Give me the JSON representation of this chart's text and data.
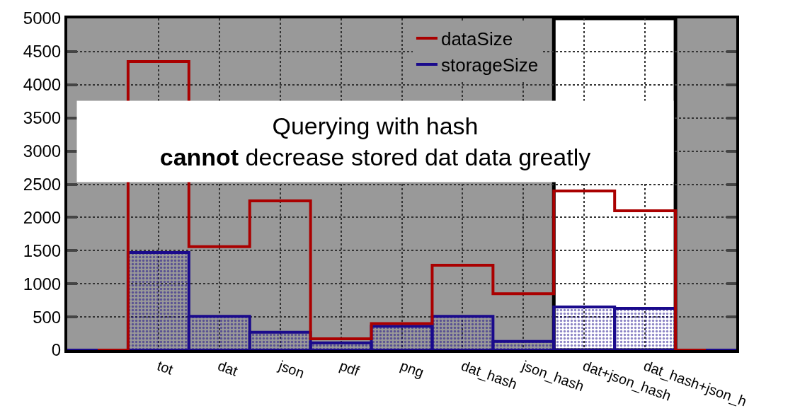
{
  "chart_data": {
    "type": "bar",
    "categories": [
      null,
      "tot",
      "dat",
      "json",
      "pdf",
      "png",
      "dat_hash",
      "json_hash",
      "dat+json_hash",
      "dat_hash+json_h",
      null
    ],
    "series": [
      {
        "name": "dataSize",
        "type": "step",
        "color": "#aa0000",
        "values": [
          0,
          4350,
          1560,
          2250,
          170,
          400,
          1280,
          850,
          2400,
          2100,
          0
        ]
      },
      {
        "name": "storageSize",
        "color": "#1a0a8c",
        "values": [
          0,
          1470,
          510,
          270,
          110,
          360,
          510,
          130,
          650,
          630,
          0
        ]
      }
    ],
    "ylim": [
      0,
      5000
    ],
    "yticks": [
      0,
      500,
      1000,
      1500,
      2000,
      2500,
      3000,
      3500,
      4000,
      4500,
      5000
    ],
    "grid": true,
    "legend": "top right",
    "annotations": [
      "Querying with hash\ncannot decrease stored dat data greatly"
    ]
  }
}
